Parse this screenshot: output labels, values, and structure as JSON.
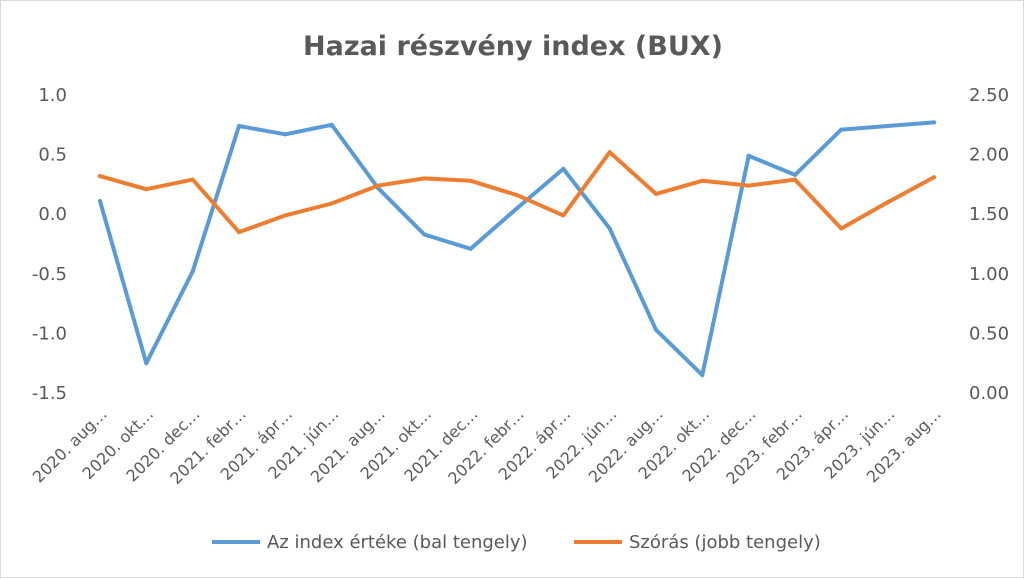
{
  "chart_data": {
    "type": "line",
    "title": "Hazai részvény index (BUX)",
    "categories": [
      "2020. aug.",
      "2020. okt.",
      "2020. dec.",
      "2021. febr.",
      "2021. ápr.",
      "2021. jún.",
      "2021. aug.",
      "2021. okt.",
      "2021. dec.",
      "2022. febr.",
      "2022. ápr.",
      "2022. jún.",
      "2022. aug.",
      "2022. okt.",
      "2022. dec.",
      "2023. febr.",
      "2023. ápr.",
      "2023. jún.",
      "2023. aug."
    ],
    "category_labels": [
      "2020. aug…",
      "2020. okt…",
      "2020. dec…",
      "2021. febr…",
      "2021. ápr…",
      "2021. jún…",
      "2021. aug…",
      "2021. okt…",
      "2021. dec…",
      "2022. febr…",
      "2022. ápr…",
      "2022. jún…",
      "2022. aug…",
      "2022. okt…",
      "2022. dec…",
      "2023. febr…",
      "2023. ápr…",
      "2023. jún…",
      "2023. aug…"
    ],
    "series": [
      {
        "name": "Az index értéke (bal tengely)",
        "axis": "left",
        "color": "#5b9bd5",
        "values": [
          0.11,
          -1.25,
          -0.48,
          0.74,
          0.67,
          0.75,
          0.22,
          -0.17,
          -0.29,
          0.05,
          0.38,
          -0.12,
          -0.97,
          -1.35,
          0.49,
          0.33,
          0.71,
          0.74,
          0.77
        ]
      },
      {
        "name": "Szórás (jobb tengely)",
        "axis": "right",
        "color": "#ed7d31",
        "values": [
          1.82,
          1.71,
          1.79,
          1.35,
          1.49,
          1.59,
          1.74,
          1.8,
          1.78,
          1.66,
          1.49,
          2.02,
          1.67,
          1.78,
          1.74,
          1.79,
          1.38,
          1.6,
          1.81
        ]
      }
    ],
    "y_left": {
      "min": -1.5,
      "max": 1.0,
      "step": 0.5,
      "decimals": 1,
      "ticks": [
        "-1.5",
        "-1.0",
        "-0.5",
        "0.0",
        "0.5",
        "1.0"
      ]
    },
    "y_right": {
      "min": 0.0,
      "max": 2.5,
      "step": 0.5,
      "decimals": 2,
      "ticks": [
        "0.00",
        "0.50",
        "1.00",
        "1.50",
        "2.00",
        "2.50"
      ]
    },
    "grid": false,
    "legend_position": "bottom"
  }
}
